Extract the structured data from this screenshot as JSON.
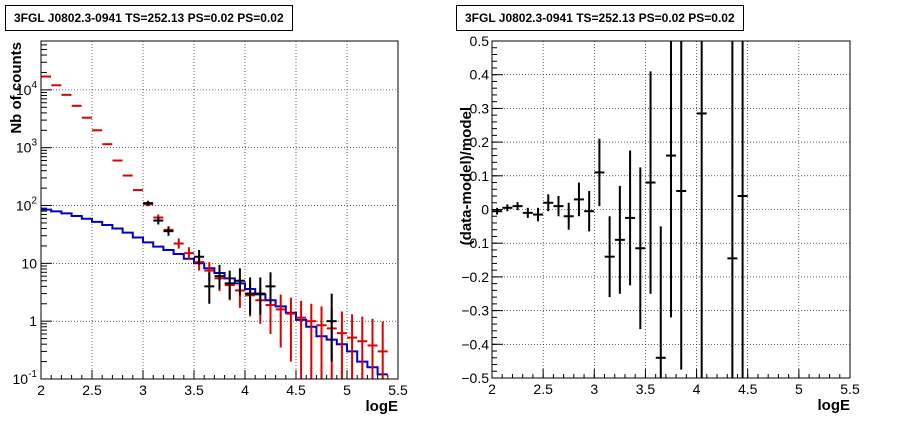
{
  "chart_data": [
    {
      "type": "scatter",
      "title": "3FGL J0802.3-0941 TS=252.13 PS=0.02 PS=0.02",
      "xlabel": "logE",
      "ylabel": "Nb of counts",
      "xlim": [
        2,
        5.5
      ],
      "ylim": [
        0.1,
        70000
      ],
      "yscale": "log",
      "grid": true,
      "x_ticks": [
        "2",
        "2.5",
        "3",
        "3.5",
        "4",
        "4.5",
        "5",
        "5.5"
      ],
      "y_ticks": [
        "10^-1",
        "1",
        "10",
        "10^2",
        "10^3",
        "10^4"
      ],
      "series": [
        {
          "color": "#dd0000",
          "style": "points-with-errors",
          "x": [
            2.05,
            2.15,
            2.25,
            2.35,
            2.45,
            2.55,
            2.65,
            2.75,
            2.85,
            2.95,
            3.05,
            3.15,
            3.25,
            3.35,
            3.45,
            3.55,
            3.65,
            3.75,
            3.85,
            3.95,
            4.05,
            4.15,
            4.25,
            4.35,
            4.45,
            4.55,
            4.65,
            4.75,
            4.85,
            4.95,
            5.05,
            5.15,
            5.25,
            5.35
          ],
          "y": [
            17000,
            12000,
            8200,
            5300,
            3300,
            2000,
            1150,
            600,
            330,
            185,
            105,
            62,
            38,
            22,
            15,
            10.5,
            7.5,
            5.5,
            4.2,
            3.4,
            2.8,
            2.3,
            1.9,
            1.6,
            1.35,
            1.15,
            1.0,
            0.85,
            0.75,
            0.62,
            0.52,
            0.45,
            0.38,
            0.3
          ],
          "err_low": [
            0,
            0,
            0,
            0,
            0,
            0,
            0,
            0,
            0,
            0,
            8,
            6,
            5,
            4,
            3.5,
            3,
            2.5,
            2.2,
            1.9,
            1.7,
            1.6,
            1.4,
            1.3,
            1.25,
            1.15,
            1.05,
            0.95,
            0.83,
            0.74,
            0.615,
            0.517,
            0.448,
            0.379,
            0.299
          ],
          "err_high": [
            0,
            0,
            0,
            0,
            0,
            0,
            0,
            0,
            0,
            0,
            11,
            8,
            6,
            5,
            4,
            3.5,
            3,
            2.6,
            2.3,
            2.1,
            1.8,
            1.6,
            1.45,
            1.3,
            1.2,
            1.1,
            1.0,
            0.95,
            0.9,
            0.85,
            0.8,
            0.75,
            0.72,
            0.68
          ]
        },
        {
          "color": "#000000",
          "style": "points-with-errors",
          "x": [
            3.05,
            3.15,
            3.25,
            3.55,
            3.65,
            3.75,
            3.85,
            3.95,
            4.05,
            4.15,
            4.25,
            4.85
          ],
          "y": [
            110,
            55,
            36,
            13,
            4,
            6,
            4.5,
            5,
            3,
            3,
            4,
            1
          ],
          "err_low": [
            10,
            8,
            6,
            3.5,
            2,
            2.4,
            2.1,
            2.2,
            1.7,
            1.7,
            2,
            0.8
          ],
          "err_high": [
            11,
            8,
            7,
            4,
            3,
            3.4,
            3,
            3.2,
            2.7,
            2.7,
            3,
            2
          ]
        },
        {
          "color": "#0000cc",
          "style": "step",
          "x": [
            2.05,
            2.15,
            2.25,
            2.35,
            2.45,
            2.55,
            2.65,
            2.75,
            2.85,
            2.95,
            3.05,
            3.15,
            3.25,
            3.35,
            3.45,
            3.55,
            3.65,
            3.75,
            3.85,
            3.95,
            4.05,
            4.15,
            4.25,
            4.35,
            4.45,
            4.55,
            4.65,
            4.75,
            4.85,
            4.95,
            5.05,
            5.15,
            5.25,
            5.35
          ],
          "y": [
            85,
            79,
            73,
            66,
            59,
            52,
            46,
            40,
            34,
            28,
            23,
            19.5,
            17,
            14.5,
            12,
            10,
            8.2,
            6.8,
            5.5,
            4.5,
            3.6,
            2.9,
            2.3,
            1.8,
            1.4,
            1.05,
            0.8,
            0.55,
            0.48,
            0.4,
            0.3,
            0.2,
            0.16,
            0.12
          ]
        }
      ]
    },
    {
      "type": "scatter",
      "title": "3FGL J0802.3-0941 TS=252.13 PS=0.02 PS=0.02",
      "xlabel": "logE",
      "ylabel": "(data-model)/model",
      "xlim": [
        2,
        5.5
      ],
      "ylim": [
        -0.5,
        0.5
      ],
      "grid": true,
      "x_ticks": [
        "2",
        "2.5",
        "3",
        "3.5",
        "4",
        "4.5",
        "5",
        "5.5"
      ],
      "y_ticks": [
        "−0.5",
        "−0.4",
        "−0.3",
        "−0.2",
        "−0.1",
        "0",
        "0.1",
        "0.2",
        "0.3",
        "0.4",
        "0.5"
      ],
      "series": [
        {
          "color": "#000000",
          "style": "points-with-errors",
          "x": [
            2.05,
            2.15,
            2.25,
            2.35,
            2.45,
            2.55,
            2.65,
            2.75,
            2.85,
            2.95,
            3.05,
            3.15,
            3.25,
            3.35,
            3.45,
            3.55,
            3.65,
            3.75,
            3.85,
            4.05,
            4.35,
            4.45
          ],
          "y": [
            -0.005,
            0.005,
            0.01,
            -0.01,
            -0.015,
            0.02,
            0.01,
            -0.02,
            0.03,
            -0.005,
            0.11,
            -0.14,
            -0.09,
            -0.025,
            -0.115,
            0.08,
            -0.44,
            0.16,
            0.055,
            0.285,
            -0.145,
            0.04
          ],
          "err": [
            0.01,
            0.01,
            0.012,
            0.015,
            0.02,
            0.025,
            0.03,
            0.04,
            0.05,
            0.06,
            0.1,
            0.12,
            0.16,
            0.2,
            0.24,
            0.33,
            0.39,
            0.48,
            0.53,
            0.79,
            0.9,
            0.95
          ]
        }
      ]
    }
  ]
}
